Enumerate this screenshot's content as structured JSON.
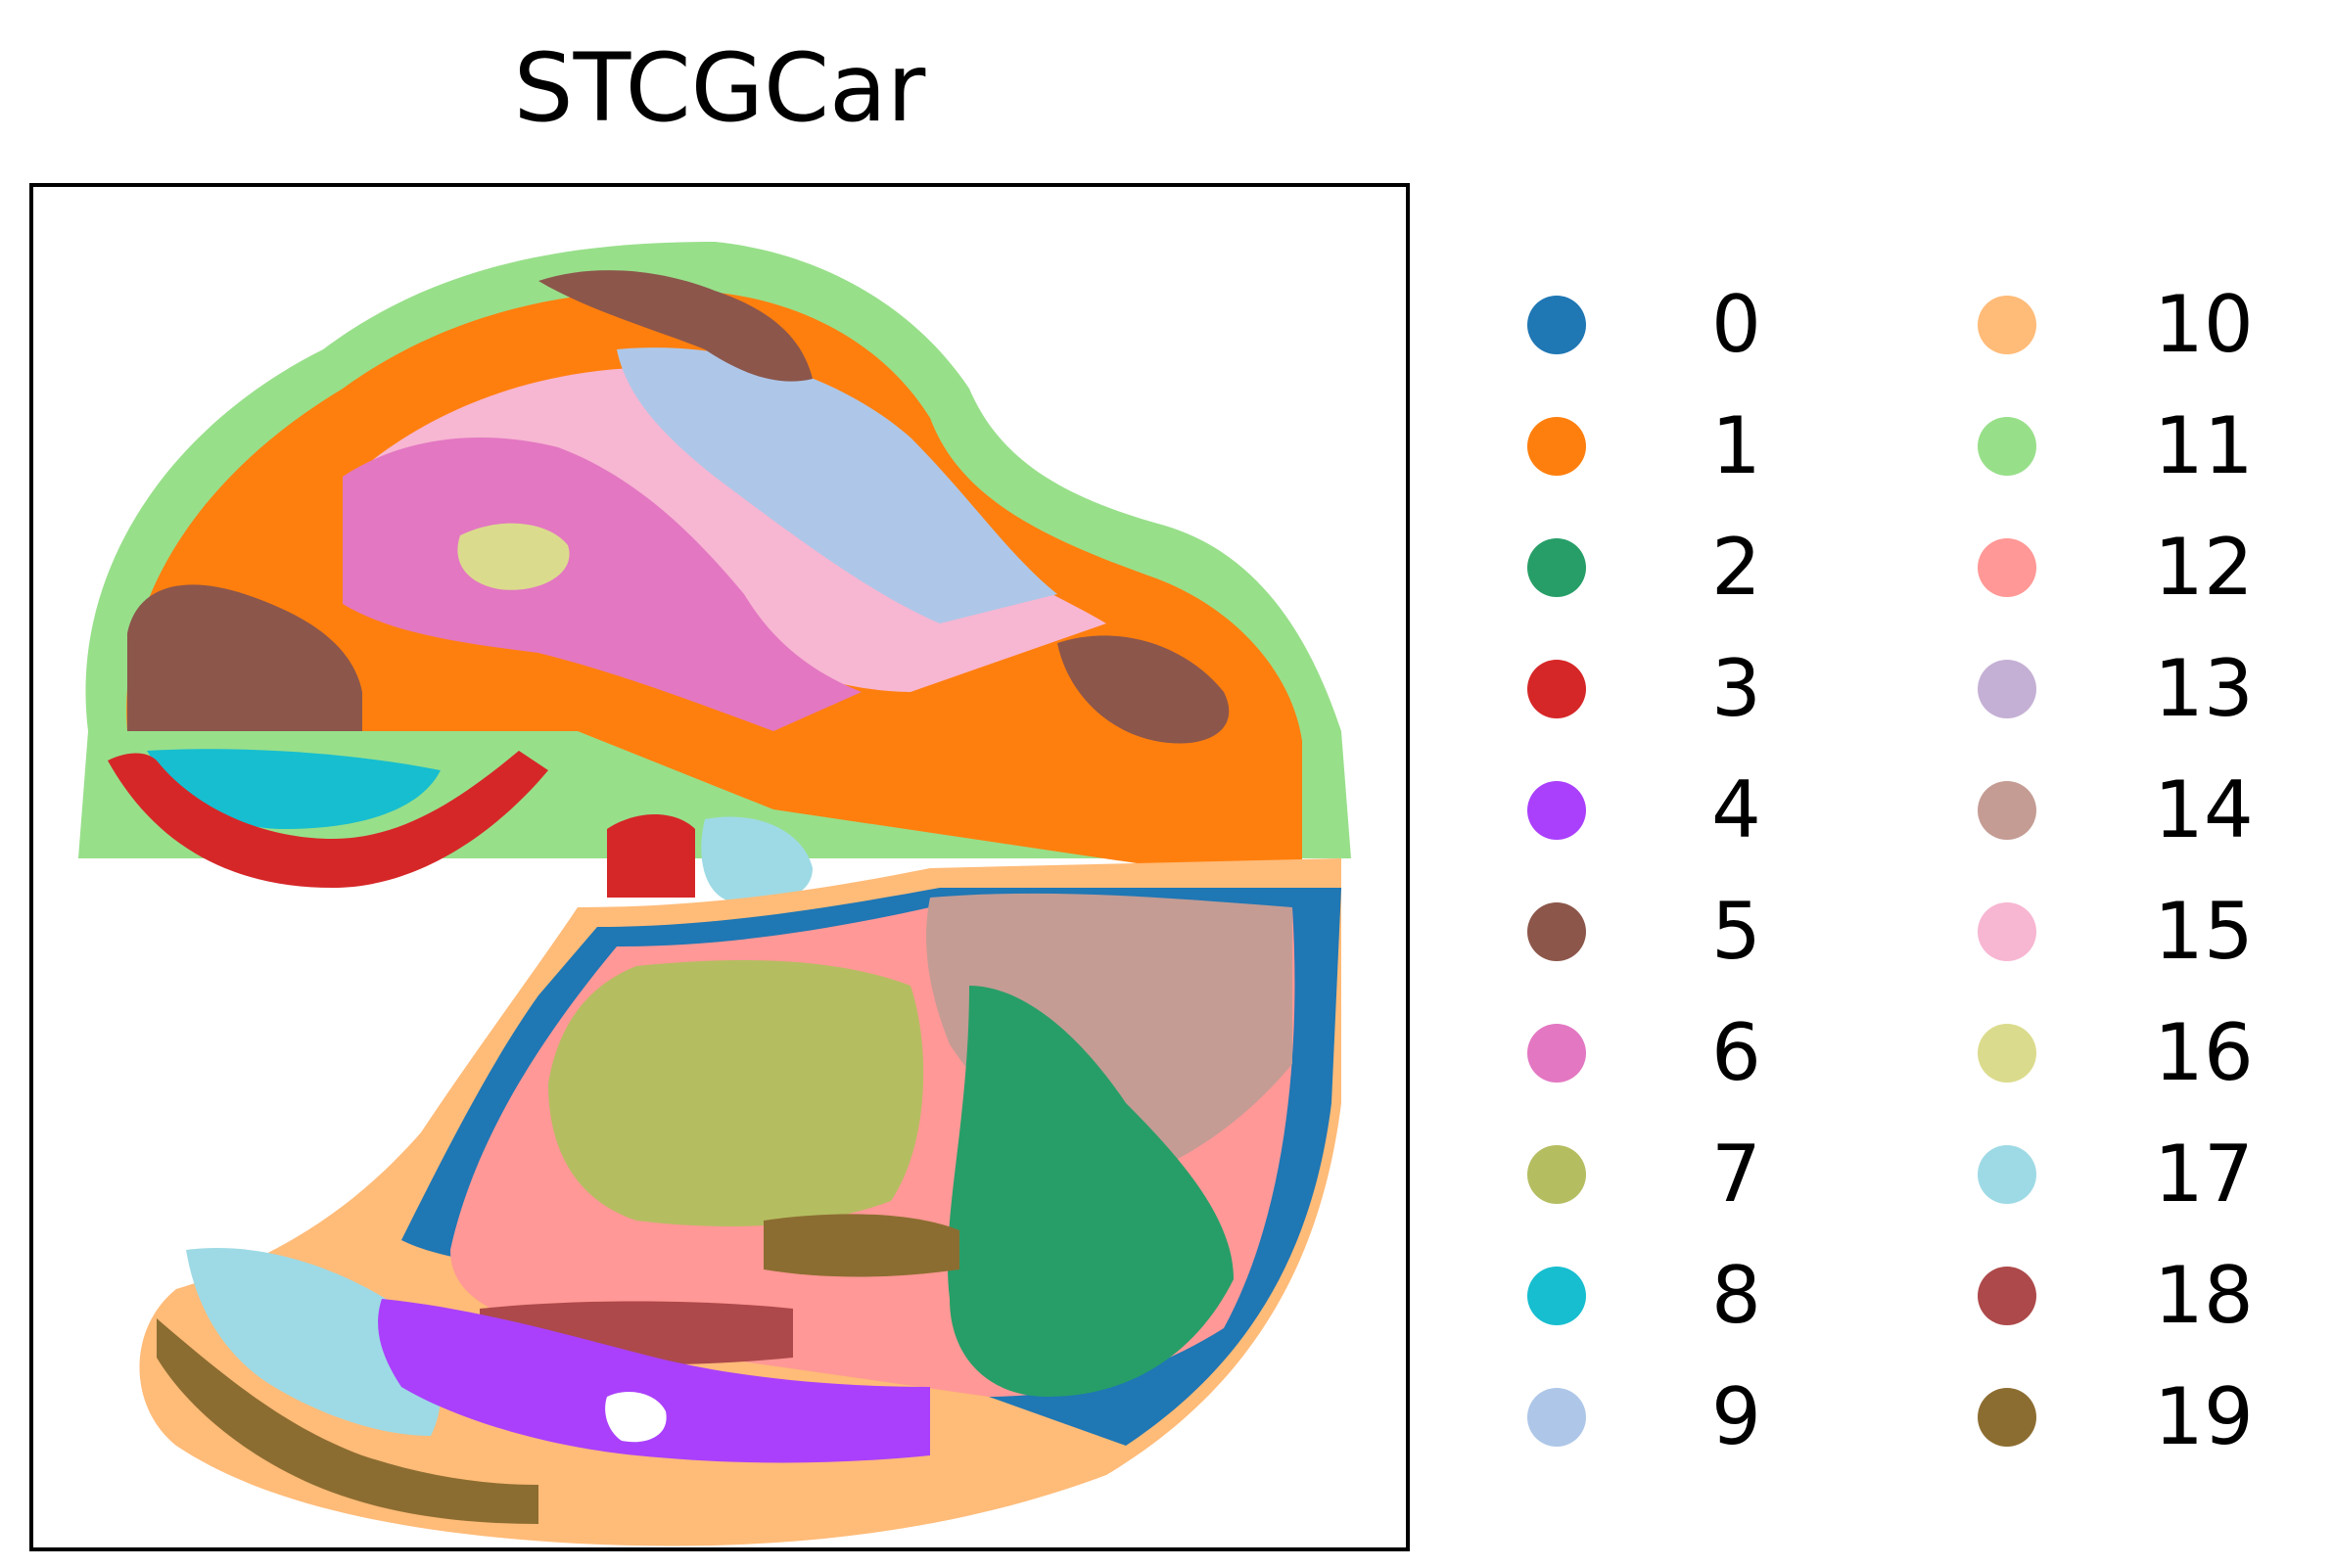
{
  "chart_data": {
    "type": "scatter",
    "title": "STCGCar",
    "xlabel": "",
    "ylabel": "",
    "grid": false,
    "legend_placement": "right",
    "legend_columns": 2,
    "categories": [
      "0",
      "1",
      "2",
      "3",
      "4",
      "5",
      "6",
      "7",
      "8",
      "9",
      "10",
      "11",
      "12",
      "13",
      "14",
      "15",
      "16",
      "17",
      "18",
      "19"
    ],
    "colors": [
      "#1f77b4",
      "#ff7f0e",
      "#279e68",
      "#d62728",
      "#aa40fc",
      "#8c564b",
      "#e377c2",
      "#b5bd61",
      "#17becf",
      "#aec7e8",
      "#ffbb78",
      "#98df8a",
      "#ff9896",
      "#c5b0d5",
      "#c49c94",
      "#f7b6d2",
      "#dbdb8d",
      "#9edae5",
      "#ad494a",
      "#8c6d31"
    ]
  }
}
